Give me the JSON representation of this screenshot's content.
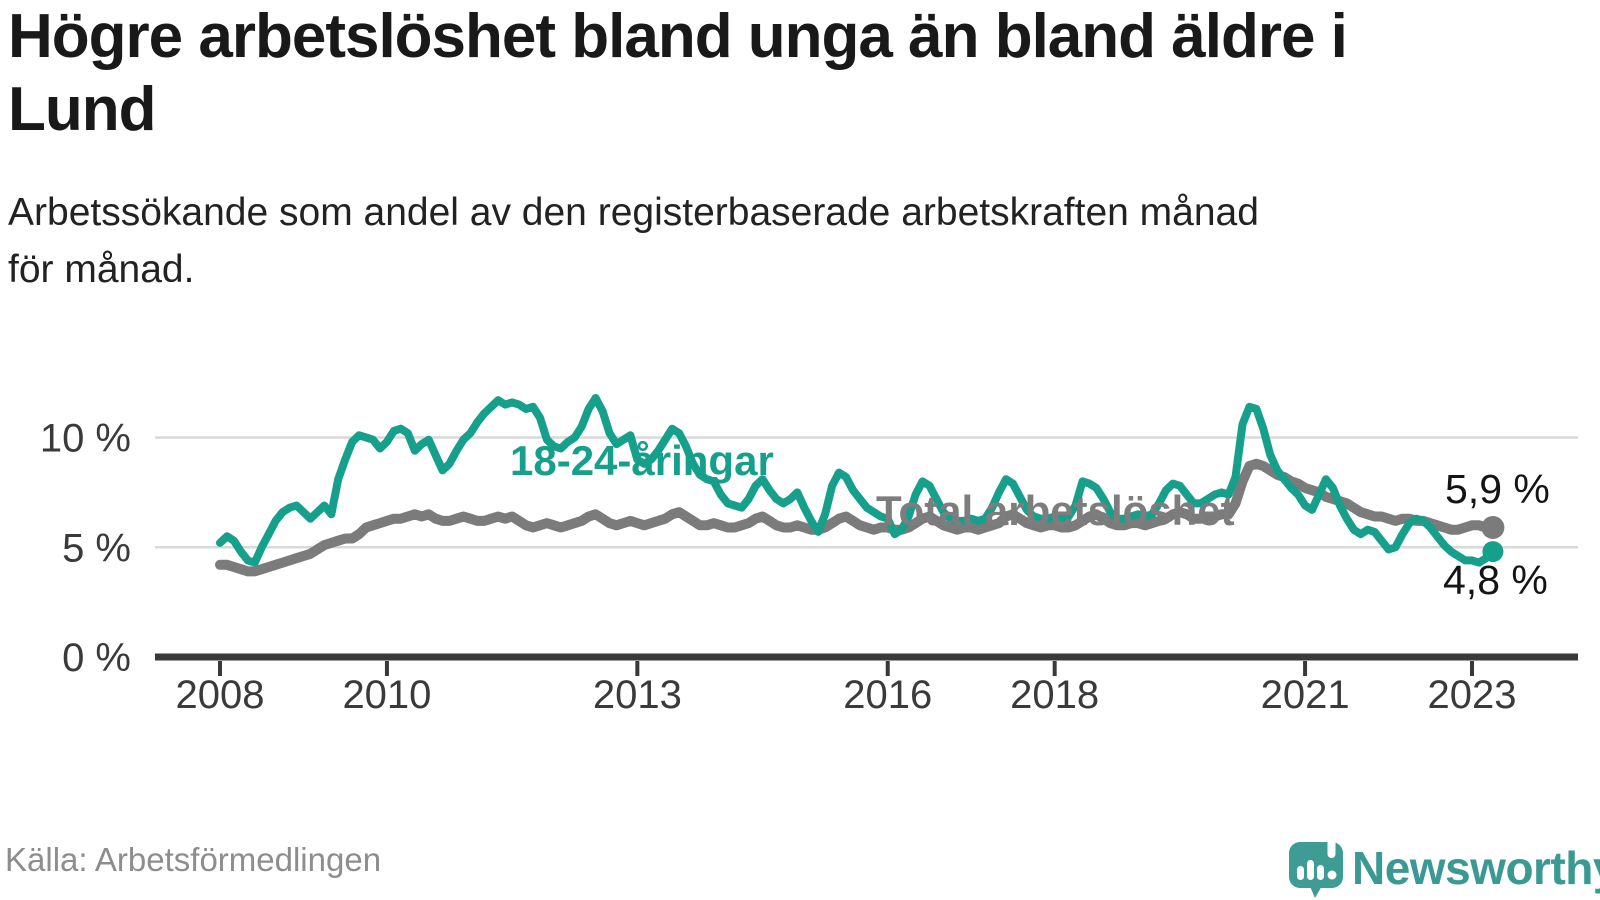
{
  "header": {
    "title_lines": [
      "Högre arbetslöshet bland unga än bland äldre i",
      "Lund"
    ],
    "subtitle_lines": [
      "Arbetssökande som andel av den registerbaserade arbetskraften månad",
      "för månad."
    ]
  },
  "footer": {
    "source": "Källa: Arbetsförmedlingen",
    "brand": "Newsworthy"
  },
  "colors": {
    "youth_line": "#16A08C",
    "total_line": "#7B7B7B",
    "gridline": "#d9d9d9",
    "axis": "#39393b",
    "logo_teal": "#3A9992"
  },
  "chart_data": {
    "type": "line",
    "title": "Högre arbetslöshet bland unga än bland äldre i Lund",
    "subtitle": "Arbetssökande som andel av den registerbaserade arbetskraften månad för månad.",
    "x_start": "2008-01",
    "x_end": "2023-04",
    "x_interval": "month",
    "ylim": [
      0,
      12.5
    ],
    "grid": "horizontal",
    "legend_position": "inline-labels",
    "y_ticks": [
      {
        "value": 0,
        "label": "0 %"
      },
      {
        "value": 5,
        "label": "5 %"
      },
      {
        "value": 10,
        "label": "10 %"
      }
    ],
    "x_ticks": [
      {
        "year": 2008,
        "label": "2008"
      },
      {
        "year": 2010,
        "label": "2010"
      },
      {
        "year": 2013,
        "label": "2013"
      },
      {
        "year": 2016,
        "label": "2016"
      },
      {
        "year": 2018,
        "label": "2018"
      },
      {
        "year": 2021,
        "label": "2021"
      },
      {
        "year": 2023,
        "label": "2023"
      }
    ],
    "series": [
      {
        "name": "18-24-åringar",
        "color": "#16A08C",
        "end_label": "4,8 %",
        "last_value": 4.8,
        "values": [
          5.2,
          5.5,
          5.3,
          4.8,
          4.4,
          4.3,
          5.0,
          5.6,
          6.2,
          6.6,
          6.8,
          6.9,
          6.6,
          6.3,
          6.6,
          6.9,
          6.5,
          8.1,
          9.0,
          9.8,
          10.1,
          10.0,
          9.9,
          9.5,
          9.8,
          10.3,
          10.4,
          10.2,
          9.4,
          9.7,
          9.9,
          9.2,
          8.5,
          8.8,
          9.4,
          9.9,
          10.2,
          10.7,
          11.1,
          11.4,
          11.7,
          11.5,
          11.6,
          11.5,
          11.3,
          11.4,
          10.9,
          9.9,
          9.6,
          9.5,
          9.8,
          10.0,
          10.5,
          11.3,
          11.8,
          11.2,
          10.2,
          9.7,
          9.9,
          10.1,
          9.0,
          8.8,
          9.0,
          9.4,
          9.9,
          10.4,
          10.2,
          9.6,
          8.8,
          8.3,
          8.1,
          8.0,
          7.4,
          7.0,
          6.9,
          6.8,
          7.2,
          7.8,
          8.1,
          7.6,
          7.2,
          7.0,
          7.2,
          7.5,
          6.8,
          6.2,
          5.7,
          6.5,
          7.8,
          8.4,
          8.2,
          7.6,
          7.2,
          6.8,
          6.6,
          6.4,
          6.3,
          5.6,
          5.8,
          6.4,
          7.4,
          8.0,
          7.8,
          7.2,
          6.6,
          6.3,
          6.2,
          6.2,
          6.3,
          6.2,
          6.3,
          6.8,
          7.5,
          8.1,
          7.9,
          7.3,
          6.7,
          6.4,
          6.3,
          6.3,
          6.4,
          6.3,
          6.4,
          6.9,
          8.0,
          7.9,
          7.7,
          7.2,
          6.6,
          6.3,
          6.3,
          6.4,
          6.5,
          6.4,
          6.5,
          7.0,
          7.6,
          7.9,
          7.8,
          7.4,
          7.0,
          7.0,
          7.2,
          7.4,
          7.5,
          7.4,
          8.2,
          10.6,
          11.4,
          11.3,
          10.4,
          9.2,
          8.5,
          8.1,
          7.7,
          7.4,
          6.9,
          6.7,
          7.4,
          8.1,
          7.7,
          6.9,
          6.3,
          5.8,
          5.6,
          5.8,
          5.7,
          5.3,
          4.9,
          5.0,
          5.6,
          6.1,
          6.3,
          6.2,
          5.9,
          5.5,
          5.1,
          4.8,
          4.6,
          4.4,
          4.4,
          4.3,
          4.5,
          4.8
        ]
      },
      {
        "name": "Total arbetslöshet",
        "color": "#7B7B7B",
        "end_label": "5,9 %",
        "last_value": 5.9,
        "values": [
          4.2,
          4.2,
          4.1,
          4.0,
          3.9,
          3.9,
          4.0,
          4.1,
          4.2,
          4.3,
          4.4,
          4.5,
          4.6,
          4.7,
          4.9,
          5.1,
          5.2,
          5.3,
          5.4,
          5.4,
          5.6,
          5.9,
          6.0,
          6.1,
          6.2,
          6.3,
          6.3,
          6.4,
          6.5,
          6.4,
          6.5,
          6.3,
          6.2,
          6.2,
          6.3,
          6.4,
          6.3,
          6.2,
          6.2,
          6.3,
          6.4,
          6.3,
          6.4,
          6.2,
          6.0,
          5.9,
          6.0,
          6.1,
          6.0,
          5.9,
          6.0,
          6.1,
          6.2,
          6.4,
          6.5,
          6.3,
          6.1,
          6.0,
          6.1,
          6.2,
          6.1,
          6.0,
          6.1,
          6.2,
          6.3,
          6.5,
          6.6,
          6.4,
          6.2,
          6.0,
          6.0,
          6.1,
          6.0,
          5.9,
          5.9,
          6.0,
          6.1,
          6.3,
          6.4,
          6.2,
          6.0,
          5.9,
          5.9,
          6.0,
          5.9,
          5.8,
          5.8,
          5.9,
          6.1,
          6.3,
          6.4,
          6.2,
          6.0,
          5.9,
          5.8,
          5.9,
          5.9,
          5.8,
          5.8,
          5.9,
          6.1,
          6.3,
          6.4,
          6.2,
          6.0,
          5.9,
          5.8,
          5.9,
          5.9,
          5.8,
          5.9,
          6.0,
          6.1,
          6.4,
          6.5,
          6.3,
          6.1,
          6.0,
          5.9,
          6.0,
          6.0,
          5.9,
          5.9,
          6.0,
          6.2,
          6.4,
          6.5,
          6.3,
          6.1,
          6.0,
          6.0,
          6.1,
          6.1,
          6.0,
          6.1,
          6.2,
          6.3,
          6.5,
          6.6,
          6.5,
          6.3,
          6.3,
          6.4,
          6.4,
          6.5,
          6.5,
          7.0,
          8.0,
          8.7,
          8.8,
          8.7,
          8.5,
          8.3,
          8.2,
          8.0,
          7.9,
          7.7,
          7.6,
          7.5,
          7.3,
          7.2,
          7.1,
          7.0,
          6.8,
          6.6,
          6.5,
          6.4,
          6.4,
          6.3,
          6.2,
          6.3,
          6.3,
          6.2,
          6.2,
          6.1,
          6.0,
          5.9,
          5.8,
          5.8,
          5.9,
          6.0,
          6.0,
          5.9,
          5.9
        ]
      }
    ]
  }
}
